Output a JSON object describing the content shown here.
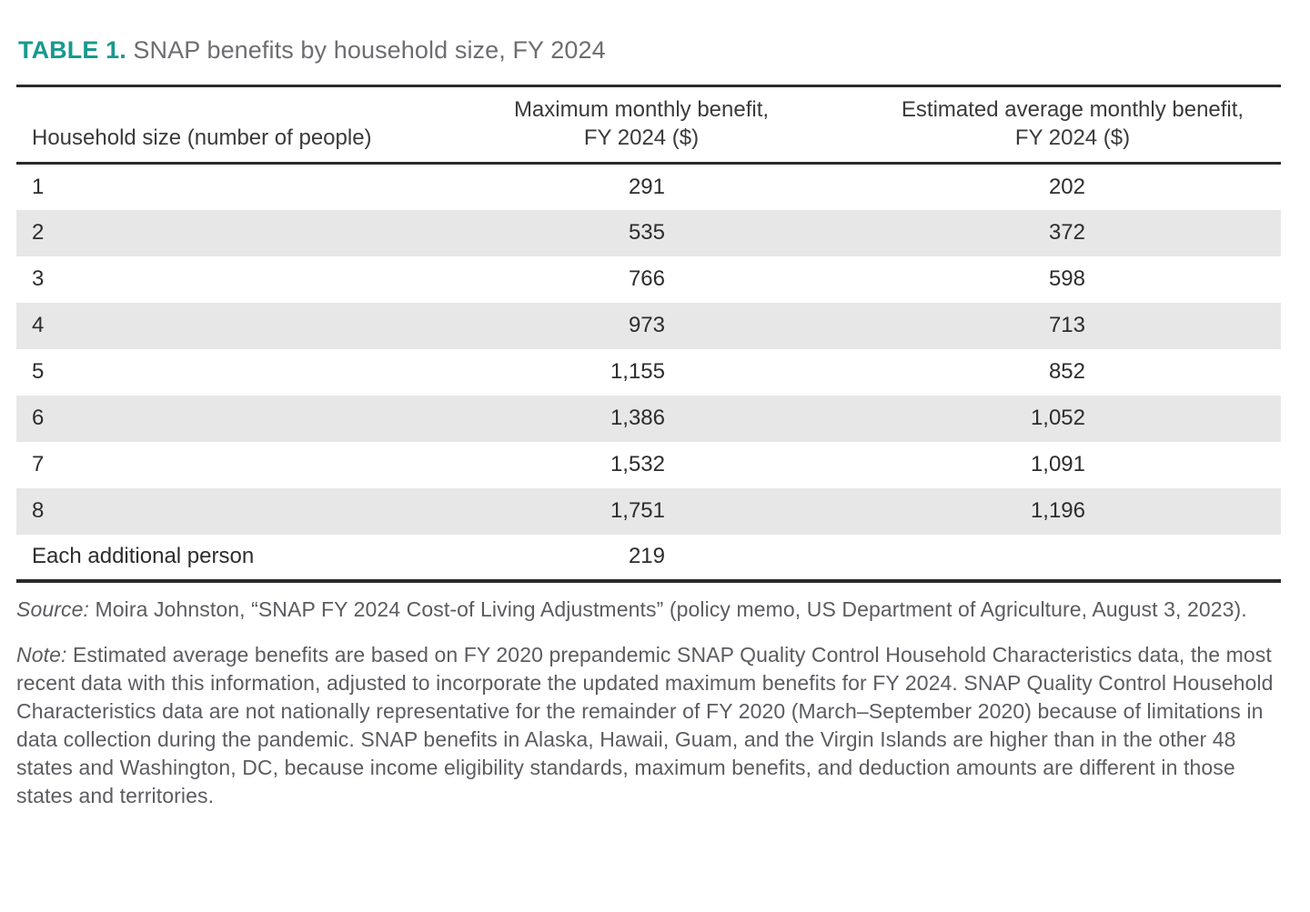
{
  "title": {
    "label": "TABLE 1.",
    "text": " SNAP benefits by household size, FY 2024"
  },
  "colors": {
    "accent_teal": "#18998F",
    "title_gray": "#6D6E71",
    "row_stripe": "#E7E7E7",
    "rule_dark": "#2B2A2B",
    "body_text": "#2E2C2E",
    "footnote_text": "#5B5C60"
  },
  "table": {
    "columns": [
      "Household size (number of people)",
      "Maximum monthly benefit,\nFY 2024 ($)",
      "Estimated average monthly benefit,\nFY 2024 ($)"
    ],
    "rows": [
      {
        "size": "1",
        "max": "291",
        "avg": "202"
      },
      {
        "size": "2",
        "max": "535",
        "avg": "372"
      },
      {
        "size": "3",
        "max": "766",
        "avg": "598"
      },
      {
        "size": "4",
        "max": "973",
        "avg": "713"
      },
      {
        "size": "5",
        "max": "1,155",
        "avg": "852"
      },
      {
        "size": "6",
        "max": "1,386",
        "avg": "1,052"
      },
      {
        "size": "7",
        "max": "1,532",
        "avg": "1,091"
      },
      {
        "size": "8",
        "max": "1,751",
        "avg": "1,196"
      },
      {
        "size": "Each additional person",
        "max": "219",
        "avg": ""
      }
    ]
  },
  "source": {
    "label": "Source:",
    "text": " Moira Johnston, “SNAP FY 2024 Cost-of Living Adjustments” (policy memo, US Department of Agriculture, August 3, 2023)."
  },
  "note": {
    "label": "Note:",
    "text": " Estimated average benefits are based on FY 2020 prepandemic SNAP Quality Control Household Characteristics data, the most recent data with this information, adjusted to incorporate the updated maximum benefits for FY 2024. SNAP Quality Control Household Characteristics data are not nationally representative for the remainder of FY 2020 (March–September 2020) because of limitations in data collection during the pandemic. SNAP benefits in Alaska, Hawaii, Guam, and the Virgin Islands are higher than in the other 48 states and Washington, DC, because income eligibility standards, maximum benefits, and deduction amounts are different in those states and territories."
  }
}
